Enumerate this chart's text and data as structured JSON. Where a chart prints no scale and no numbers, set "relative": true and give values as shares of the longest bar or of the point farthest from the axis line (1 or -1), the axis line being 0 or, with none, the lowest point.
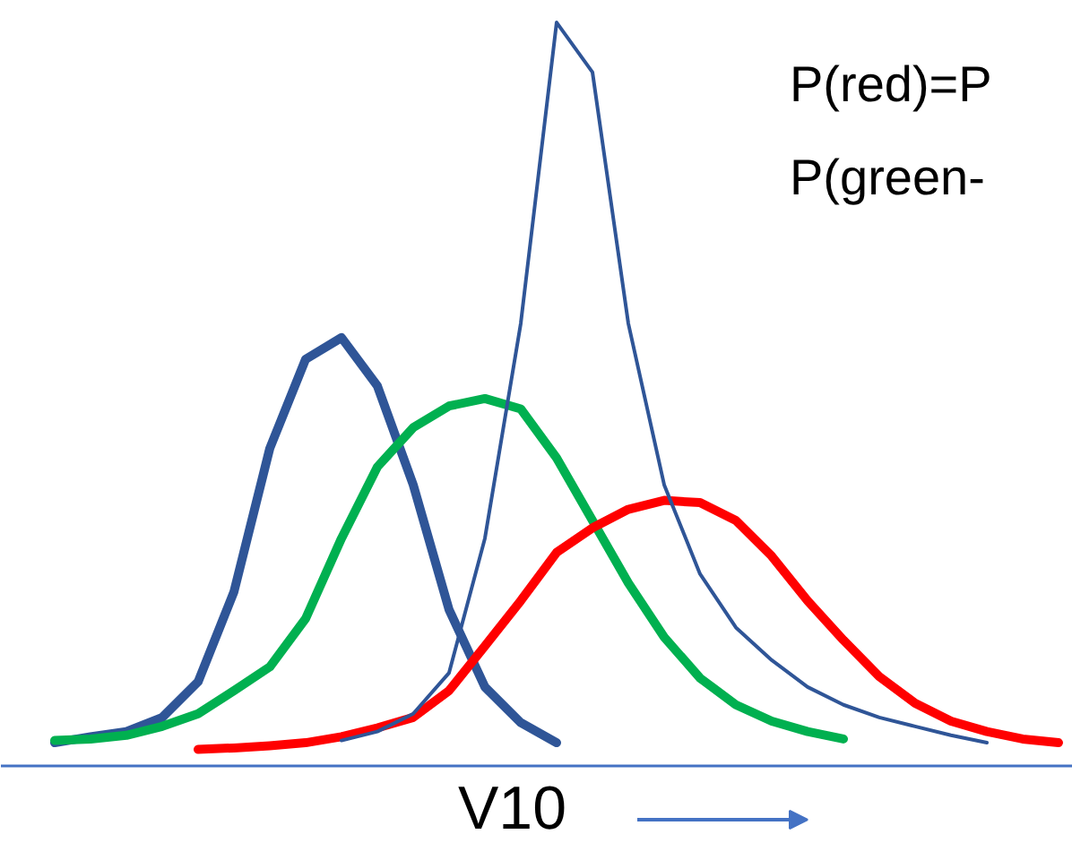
{
  "chart_data": {
    "type": "line",
    "relative": true,
    "xlabel": "V10",
    "annotations": [
      "P(red)=P",
      "P(green-"
    ],
    "categories": [
      null,
      null,
      null,
      null,
      null,
      null,
      null,
      null,
      null,
      null,
      null,
      null,
      null,
      null,
      null,
      null,
      null,
      null,
      null,
      null,
      null,
      null,
      null,
      null,
      null,
      null,
      null,
      null,
      null,
      null
    ],
    "series": [
      {
        "color": "#2f5597",
        "values": [
          null,
          0.031,
          0.039,
          0.046,
          0.065,
          0.113,
          0.234,
          0.427,
          0.547,
          0.576,
          0.511,
          0.378,
          0.21,
          0.106,
          0.058,
          0.031,
          null,
          null,
          null,
          null,
          null,
          null,
          null,
          null,
          null,
          null,
          null,
          null,
          null,
          null
        ]
      },
      {
        "color": "#00b050",
        "values": [
          null,
          0.034,
          0.036,
          0.041,
          0.053,
          0.07,
          0.101,
          0.133,
          0.198,
          0.306,
          0.402,
          0.455,
          0.484,
          0.494,
          0.48,
          0.414,
          0.33,
          0.246,
          0.173,
          0.118,
          0.082,
          0.06,
          0.046,
          0.036,
          null,
          null,
          null,
          null,
          null,
          null
        ]
      },
      {
        "color": "#ff0000",
        "values": [
          null,
          null,
          null,
          null,
          null,
          0.022,
          0.024,
          0.027,
          0.031,
          0.039,
          0.051,
          0.065,
          0.101,
          0.161,
          0.222,
          0.287,
          0.32,
          0.345,
          0.357,
          0.354,
          0.33,
          0.282,
          0.222,
          0.169,
          0.12,
          0.084,
          0.06,
          0.046,
          0.036,
          0.031
        ]
      },
      {
        "color": "#2f5597",
        "values": [
          null,
          null,
          null,
          null,
          null,
          null,
          null,
          null,
          null,
          0.034,
          0.046,
          0.07,
          0.125,
          0.306,
          0.595,
          1.0,
          0.933,
          0.595,
          0.378,
          0.258,
          0.186,
          0.142,
          0.106,
          0.082,
          0.065,
          0.053,
          0.041,
          0.031,
          null,
          null
        ]
      }
    ],
    "marker": "none",
    "line_style": "solid"
  }
}
